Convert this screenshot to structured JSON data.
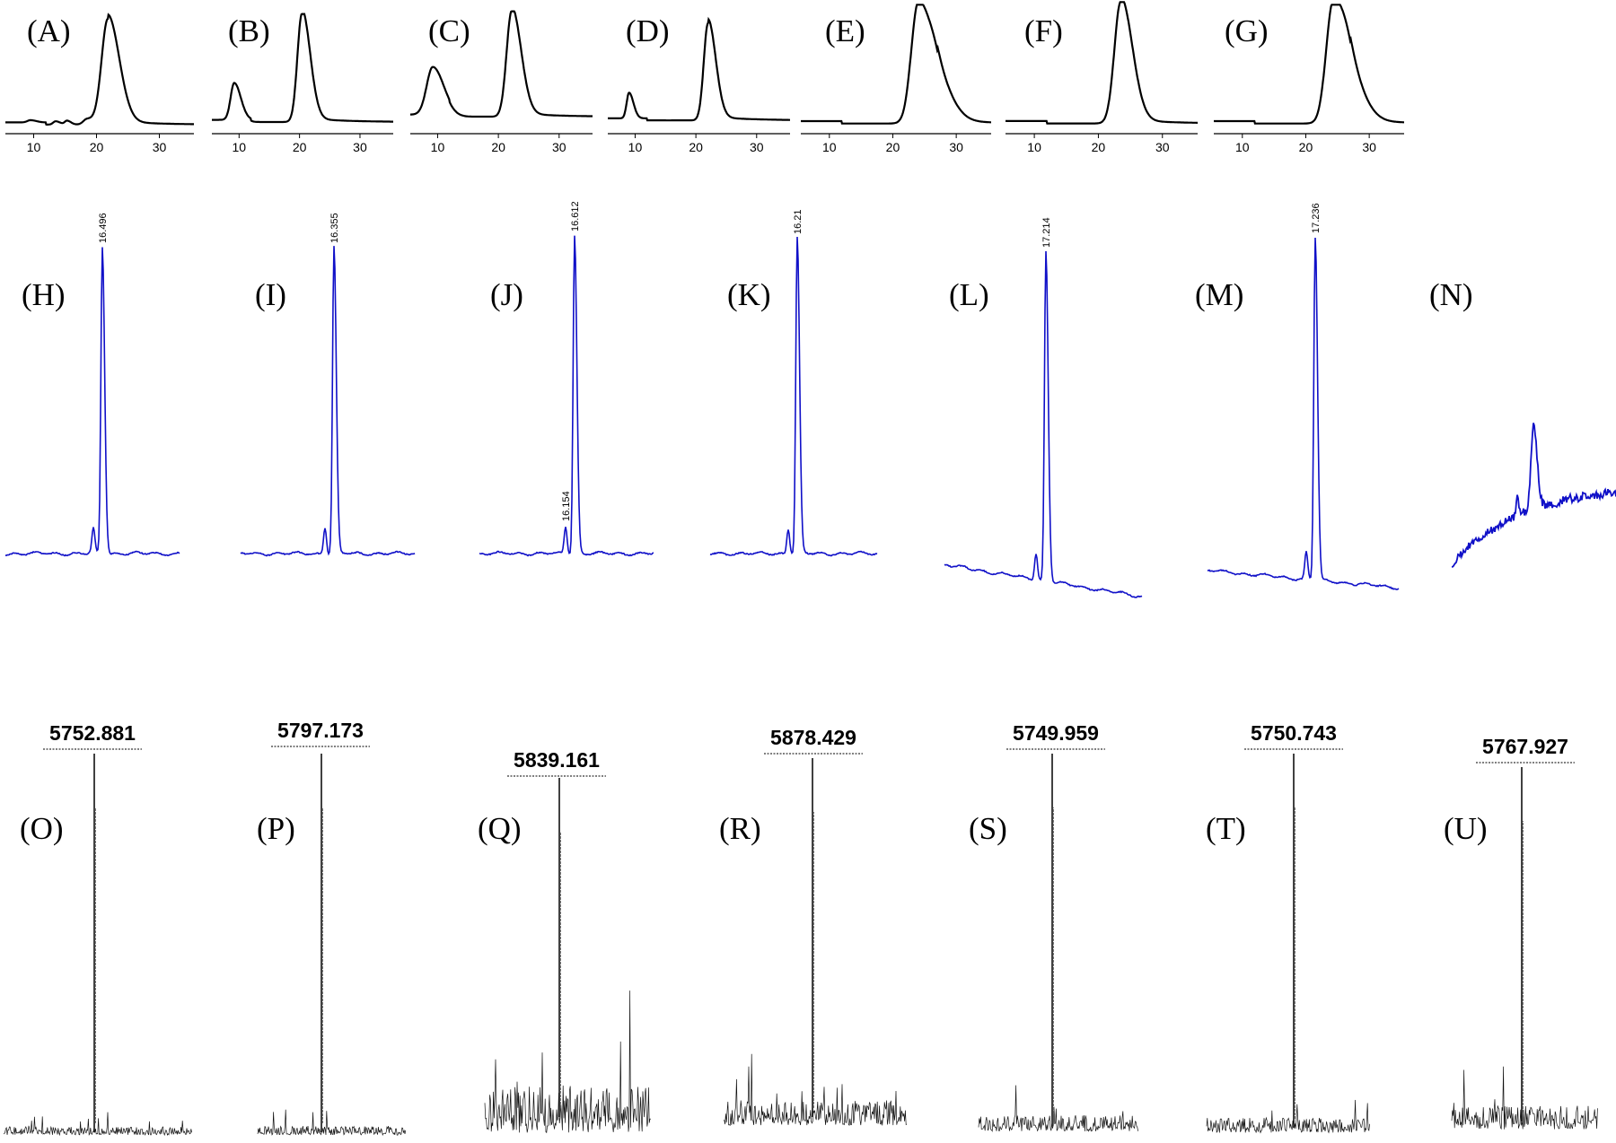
{
  "colors": {
    "gpc_line": "#000000",
    "hplc_line": "#1010c8",
    "ms_line": "#111111"
  },
  "gpc_panels": [
    {
      "label": "(A)",
      "ticks": [
        10,
        20,
        30
      ],
      "xlim": [
        5.5,
        35.5
      ],
      "initial": true,
      "peaks": [
        [
          9.5,
          0.02,
          0.5
        ],
        [
          13.5,
          0.03,
          0.4
        ],
        [
          15.3,
          0.035,
          0.35
        ],
        [
          18.5,
          0.05,
          0.6
        ],
        [
          21.8,
          0.95,
          1.0
        ]
      ],
      "tail": 0.25
    },
    {
      "label": "(B)",
      "ticks": [
        10,
        20,
        30
      ],
      "xlim": [
        5.5,
        35.5
      ],
      "peaks": [
        [
          9.2,
          0.34,
          0.6
        ],
        [
          20.4,
          1.0,
          0.75
        ]
      ],
      "tail": 0.25
    },
    {
      "label": "(C)",
      "ticks": [
        10,
        20,
        30
      ],
      "xlim": [
        5.5,
        35.5
      ],
      "peaks": [
        [
          9.2,
          0.45,
          1.0
        ],
        [
          22.2,
          1.0,
          0.85
        ]
      ],
      "tail": 0.25
    },
    {
      "label": "(D)",
      "ticks": [
        10,
        20,
        30
      ],
      "xlim": [
        5.5,
        35.5
      ],
      "peaks": [
        [
          9.0,
          0.25,
          0.4
        ],
        [
          22.0,
          0.95,
          0.7
        ]
      ],
      "tail": 0.25
    },
    {
      "label": "(E)",
      "ticks": [
        10,
        20,
        30
      ],
      "xlim": [
        5.5,
        35.5
      ],
      "peaks": [
        [
          24.0,
          1.0,
          1.1
        ],
        [
          27.0,
          0.3,
          1.3
        ]
      ],
      "tail": 0.25
    },
    {
      "label": "(F)",
      "ticks": [
        10,
        20,
        30
      ],
      "xlim": [
        5.5,
        35.5
      ],
      "peaks": [
        [
          23.5,
          1.0,
          1.0
        ]
      ],
      "tail": 0.25
    },
    {
      "label": "(G)",
      "ticks": [
        10,
        20,
        30
      ],
      "xlim": [
        5.5,
        35.5
      ],
      "peaks": [
        [
          24.3,
          1.0,
          1.1
        ],
        [
          27.0,
          0.3,
          1.3
        ]
      ],
      "tail": 0.25
    }
  ],
  "hplc_panels": [
    {
      "label": "(H)",
      "peak_label": "16.496",
      "minor_label": ""
    },
    {
      "label": "(I)",
      "peak_label": "16.355",
      "minor_label": ""
    },
    {
      "label": "(J)",
      "peak_label": "16.612",
      "minor_label": "16.154"
    },
    {
      "label": "(K)",
      "peak_label": "16.21",
      "minor_label": ""
    },
    {
      "label": "(L)",
      "peak_label": "17.214",
      "minor_label": ""
    },
    {
      "label": "(M)",
      "peak_label": "17.236",
      "minor_label": ""
    },
    {
      "label": "(N)",
      "peak_label": "",
      "minor_label": ""
    }
  ],
  "ms_panels": [
    {
      "label": "(O)",
      "mass": "5752.881"
    },
    {
      "label": "(P)",
      "mass": "5797.173"
    },
    {
      "label": "(Q)",
      "mass": "5839.161"
    },
    {
      "label": "(R)",
      "mass": "5878.429"
    },
    {
      "label": "(S)",
      "mass": "5749.959"
    },
    {
      "label": "(T)",
      "mass": "5750.743"
    },
    {
      "label": "(U)",
      "mass": "5767.927"
    }
  ],
  "chart_data": [
    {
      "type": "line",
      "title": "",
      "xlabel": "",
      "ylabel": "",
      "description_row": "GPC traces (A)-(G)",
      "xlim": [
        5.5,
        35.5
      ],
      "xticks": [
        10,
        20,
        30
      ],
      "series": [
        {
          "panel": "(A)",
          "x": [
            10,
            15,
            20,
            21.8,
            25,
            30,
            35
          ],
          "y": [
            0.02,
            0.03,
            0.1,
            0.95,
            0.15,
            0.03,
            0.02
          ]
        },
        {
          "panel": "(B)",
          "x": [
            9.2,
            15,
            20.4,
            25,
            30,
            35
          ],
          "y": [
            0.34,
            0.08,
            1.0,
            0.12,
            0.05,
            0.03
          ]
        },
        {
          "panel": "(C)",
          "x": [
            9.2,
            15,
            20,
            22.2,
            25,
            30,
            35
          ],
          "y": [
            0.45,
            0.18,
            0.12,
            1.0,
            0.1,
            0.07,
            0.05
          ]
        },
        {
          "panel": "(D)",
          "x": [
            9.0,
            15,
            22.0,
            25,
            30,
            35
          ],
          "y": [
            0.25,
            0.05,
            0.95,
            0.07,
            0.04,
            0.03
          ]
        },
        {
          "panel": "(E)",
          "x": [
            10,
            20,
            24.0,
            27.0,
            30,
            35
          ],
          "y": [
            0.02,
            0.05,
            1.0,
            0.45,
            0.06,
            0.02
          ]
        },
        {
          "panel": "(F)",
          "x": [
            10,
            20,
            23.5,
            27,
            30,
            35
          ],
          "y": [
            0.04,
            0.06,
            1.0,
            0.1,
            0.04,
            0.03
          ]
        },
        {
          "panel": "(G)",
          "x": [
            10,
            20,
            24.3,
            27.0,
            30,
            35
          ],
          "y": [
            0.02,
            0.05,
            1.0,
            0.42,
            0.06,
            0.02
          ]
        }
      ]
    },
    {
      "type": "line",
      "title": "",
      "description_row": "HPLC chromatograms (H)-(N)",
      "series": [
        {
          "panel": "(H)",
          "peak_labels": [
            "16.496"
          ]
        },
        {
          "panel": "(I)",
          "peak_labels": [
            "16.355"
          ]
        },
        {
          "panel": "(J)",
          "peak_labels": [
            "16.612",
            "16.154"
          ]
        },
        {
          "panel": "(K)",
          "peak_labels": [
            "16.21"
          ]
        },
        {
          "panel": "(L)",
          "peak_labels": [
            "17.214"
          ]
        },
        {
          "panel": "(M)",
          "peak_labels": [
            "17.236"
          ]
        },
        {
          "panel": "(N)",
          "peak_labels": []
        }
      ]
    },
    {
      "type": "line",
      "title": "",
      "description_row": "Mass spectra (O)-(U)",
      "series": [
        {
          "panel": "(O)",
          "peak_mass": 5752.881
        },
        {
          "panel": "(P)",
          "peak_mass": 5797.173
        },
        {
          "panel": "(Q)",
          "peak_mass": 5839.161
        },
        {
          "panel": "(R)",
          "peak_mass": 5878.429
        },
        {
          "panel": "(S)",
          "peak_mass": 5749.959
        },
        {
          "panel": "(T)",
          "peak_mass": 5750.743
        },
        {
          "panel": "(U)",
          "peak_mass": 5767.927
        }
      ]
    }
  ]
}
